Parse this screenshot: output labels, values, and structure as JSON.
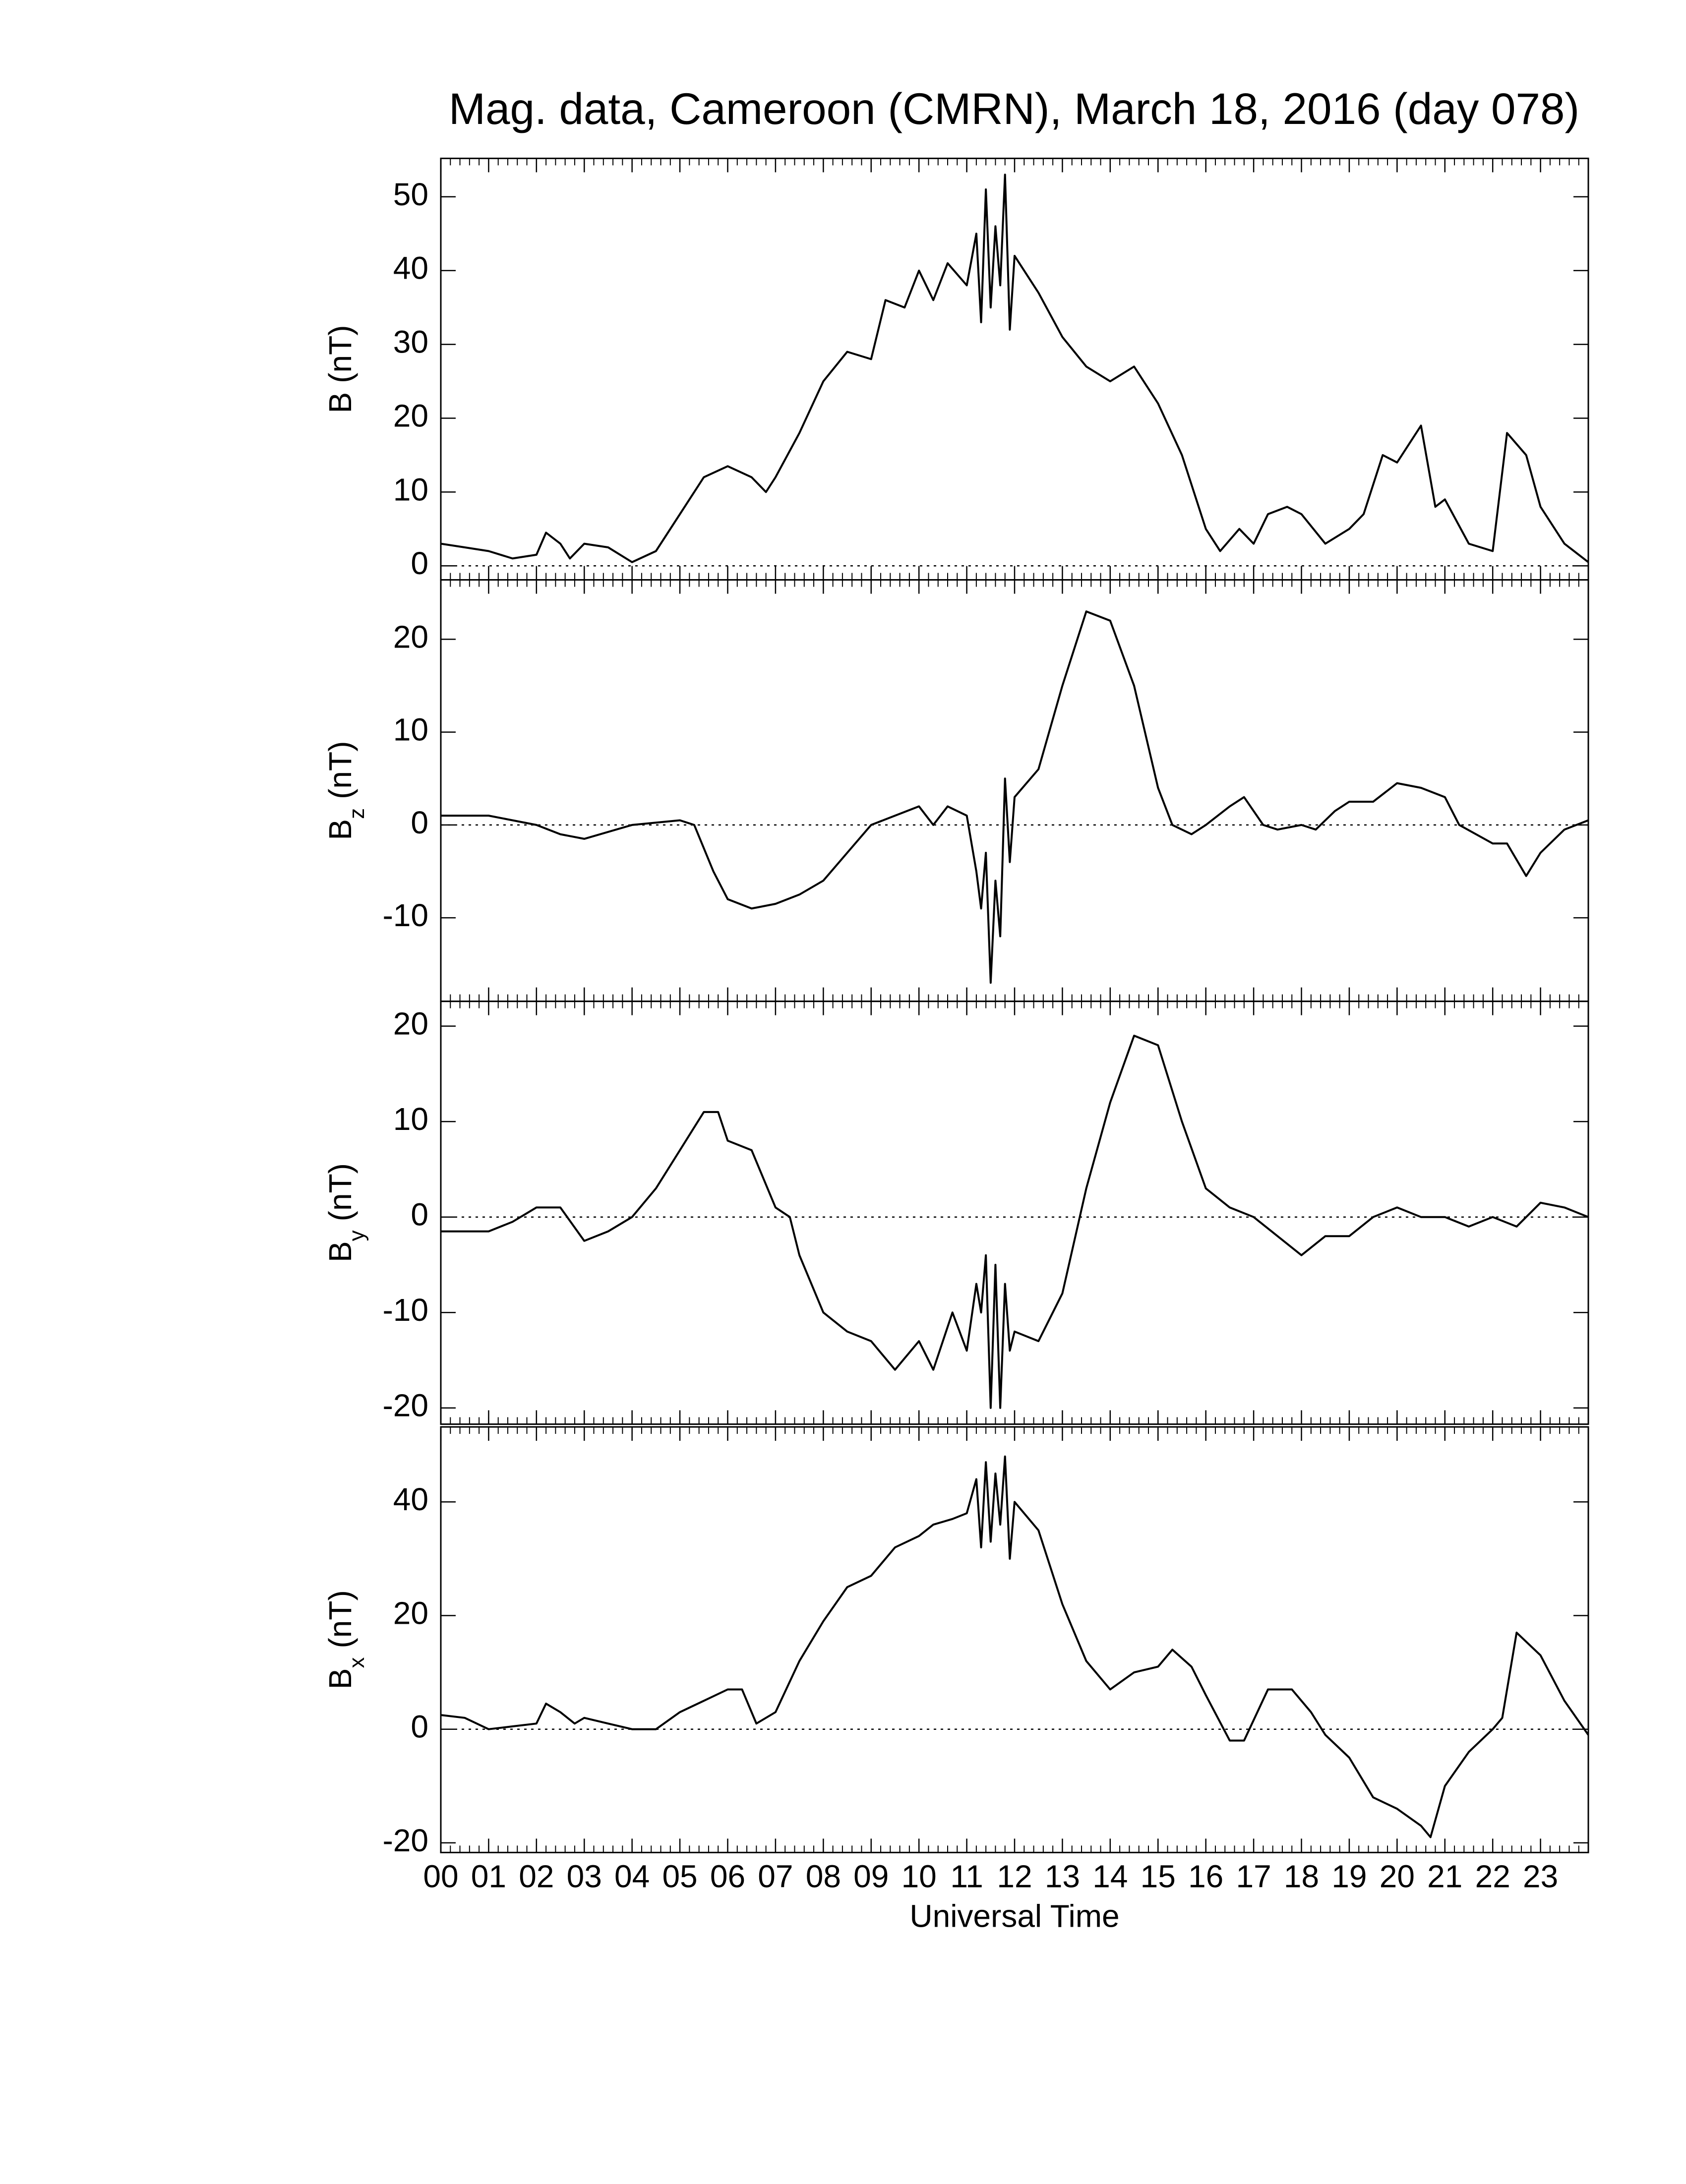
{
  "chart_data": [
    {
      "type": "line",
      "title": "Mag. data, Cameroon (CMRN), March 18, 2016 (day 078)",
      "ylabel": "B",
      "ylabel_unit": "(nT)",
      "color": "#000000",
      "xlim": [
        0,
        24
      ],
      "ylim": [
        -1.9,
        55.2
      ],
      "yticks": [
        0,
        10,
        20,
        30,
        40,
        50
      ],
      "x": [
        0,
        0.5,
        1,
        1.5,
        2,
        2.2,
        2.5,
        2.7,
        3,
        3.5,
        4,
        4.5,
        5,
        5.5,
        6,
        6.5,
        6.8,
        7,
        7.5,
        8,
        8.5,
        9,
        9.3,
        9.7,
        10,
        10.3,
        10.6,
        11,
        11.2,
        11.3,
        11.4,
        11.5,
        11.6,
        11.7,
        11.8,
        11.9,
        12,
        12.5,
        13,
        13.5,
        14,
        14.5,
        15,
        15.5,
        16,
        16.3,
        16.7,
        17,
        17.3,
        17.7,
        18,
        18.5,
        19,
        19.3,
        19.7,
        20,
        20.5,
        20.8,
        21,
        21.5,
        22,
        22.3,
        22.7,
        23,
        23.5,
        24
      ],
      "values": [
        3,
        2.5,
        2,
        1,
        1.5,
        4.5,
        3,
        1,
        3,
        2.5,
        0.5,
        2,
        7,
        12,
        13.5,
        12,
        10,
        12,
        18,
        25,
        29,
        28,
        36,
        35,
        40,
        36,
        41,
        38,
        45,
        33,
        51,
        35,
        46,
        38,
        53,
        32,
        42,
        37,
        31,
        27,
        25,
        27,
        22,
        15,
        5,
        2,
        5,
        3,
        7,
        8,
        7,
        3,
        5,
        7,
        15,
        14,
        19,
        8,
        9,
        3,
        2,
        18,
        15,
        8,
        3,
        0.5
      ]
    },
    {
      "type": "line",
      "ylabel": "B",
      "ylabel_sub": "z",
      "ylabel_unit": "(nT)",
      "color": "#000000",
      "xlim": [
        0,
        24
      ],
      "ylim": [
        -19,
        26.4
      ],
      "yticks": [
        -10,
        0,
        10,
        20
      ],
      "x": [
        0,
        1,
        1.5,
        2,
        2.5,
        3,
        4,
        5,
        5.3,
        5.7,
        6,
        6.5,
        7,
        7.5,
        8,
        8.5,
        9,
        9.5,
        10,
        10.3,
        10.6,
        11,
        11.2,
        11.3,
        11.4,
        11.5,
        11.6,
        11.7,
        11.8,
        11.9,
        12,
        12.5,
        13,
        13.5,
        14,
        14.5,
        15,
        15.3,
        15.7,
        16,
        16.5,
        16.8,
        17.2,
        17.5,
        18,
        18.3,
        18.7,
        19,
        19.5,
        20,
        20.5,
        21,
        21.3,
        22,
        22.3,
        22.7,
        23,
        23.5,
        24
      ],
      "values": [
        1,
        1,
        0.5,
        0,
        -1,
        -1.5,
        0,
        0.5,
        0,
        -5,
        -8,
        -9,
        -8.5,
        -7.5,
        -6,
        -3,
        0,
        1,
        2,
        0,
        2,
        1,
        -5,
        -9,
        -3,
        -17,
        -6,
        -12,
        5,
        -4,
        3,
        6,
        15,
        23,
        22,
        15,
        4,
        0,
        -1,
        0,
        2,
        3,
        0,
        -0.5,
        0,
        -0.5,
        1.5,
        2.5,
        2.5,
        4.5,
        4,
        3,
        0,
        -2,
        -2,
        -5.5,
        -3,
        -0.5,
        0.5
      ]
    },
    {
      "type": "line",
      "ylabel": "B",
      "ylabel_sub": "y",
      "ylabel_unit": "(nT)",
      "color": "#000000",
      "xlim": [
        0,
        24
      ],
      "ylim": [
        -21.7,
        22.6
      ],
      "yticks": [
        -20,
        -10,
        0,
        10,
        20
      ],
      "x": [
        0,
        1,
        1.5,
        2,
        2.5,
        3,
        3.5,
        4,
        4.5,
        5,
        5.5,
        5.8,
        6,
        6.5,
        7,
        7.3,
        7.5,
        8,
        8.5,
        9,
        9.5,
        10,
        10.3,
        10.7,
        11,
        11.2,
        11.3,
        11.4,
        11.5,
        11.6,
        11.7,
        11.8,
        11.9,
        12,
        12.5,
        13,
        13.5,
        14,
        14.5,
        15,
        15.5,
        16,
        16.5,
        17,
        17.5,
        18,
        18.5,
        19,
        19.5,
        20,
        20.5,
        21,
        21.5,
        22,
        22.5,
        23,
        23.5,
        24
      ],
      "values": [
        -1.5,
        -1.5,
        -0.5,
        1,
        1,
        -2.5,
        -1.5,
        0,
        3,
        7,
        11,
        11,
        8,
        7,
        1,
        0,
        -4,
        -10,
        -12,
        -13,
        -16,
        -13,
        -16,
        -10,
        -14,
        -7,
        -10,
        -4,
        -20,
        -5,
        -20,
        -7,
        -14,
        -12,
        -13,
        -8,
        3,
        12,
        19,
        18,
        10,
        3,
        1,
        0,
        -2,
        -4,
        -2,
        -2,
        0,
        1,
        0,
        0,
        -1,
        0,
        -1,
        1.5,
        1,
        0
      ]
    },
    {
      "type": "line",
      "ylabel": "B",
      "ylabel_sub": "x",
      "ylabel_unit": "(nT)",
      "xlabel": "Universal Time",
      "color": "#000000",
      "xlim": [
        0,
        24
      ],
      "ylim": [
        -21.7,
        53.2
      ],
      "yticks": [
        -20,
        0,
        20,
        40
      ],
      "xticks": [
        {
          "value": 0,
          "label": "00"
        },
        {
          "value": 1,
          "label": "01"
        },
        {
          "value": 2,
          "label": "02"
        },
        {
          "value": 3,
          "label": "03"
        },
        {
          "value": 4,
          "label": "04"
        },
        {
          "value": 5,
          "label": "05"
        },
        {
          "value": 6,
          "label": "06"
        },
        {
          "value": 7,
          "label": "07"
        },
        {
          "value": 8,
          "label": "08"
        },
        {
          "value": 9,
          "label": "09"
        },
        10,
        11,
        12,
        13,
        14,
        15,
        16,
        17,
        18,
        19,
        20,
        21,
        22,
        23
      ],
      "x": [
        0,
        0.5,
        1,
        1.5,
        2,
        2.2,
        2.5,
        2.8,
        3,
        3.5,
        4,
        4.5,
        5,
        5.5,
        6,
        6.3,
        6.6,
        7,
        7.5,
        8,
        8.5,
        9,
        9.5,
        10,
        10.3,
        10.7,
        11,
        11.2,
        11.3,
        11.4,
        11.5,
        11.6,
        11.7,
        11.8,
        11.9,
        12,
        12.5,
        13,
        13.5,
        14,
        14.5,
        15,
        15.3,
        15.7,
        16,
        16.5,
        16.8,
        17.3,
        17.8,
        18.2,
        18.5,
        19,
        19.5,
        20,
        20.5,
        20.7,
        21,
        21.5,
        22,
        22.2,
        22.5,
        23,
        23.5,
        24
      ],
      "values": [
        2.5,
        2,
        0,
        0.5,
        1,
        4.5,
        3,
        1,
        2,
        1,
        0,
        0,
        3,
        5,
        7,
        7,
        1,
        3,
        12,
        19,
        25,
        27,
        32,
        34,
        36,
        37,
        38,
        44,
        32,
        47,
        33,
        45,
        36,
        48,
        30,
        40,
        35,
        22,
        12,
        7,
        10,
        11,
        14,
        11,
        6,
        -2,
        -2,
        7,
        7,
        3,
        -1,
        -5,
        -12,
        -14,
        -17,
        -19,
        -10,
        -4,
        0,
        2,
        17,
        13,
        5,
        -1
      ]
    }
  ]
}
